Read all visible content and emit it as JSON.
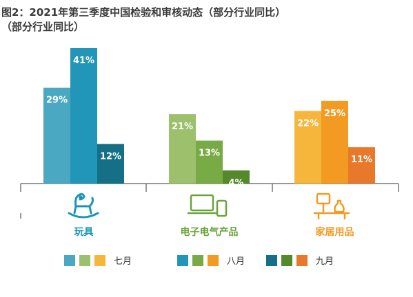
{
  "title_line1": "图2：2021年第三季度中国检验和审核动态（部分行业同比）",
  "title_line2": "（部分行业同比）",
  "chart_data": {
    "type": "bar",
    "categories": [
      "玩具",
      "电子电气产品",
      "家居用品"
    ],
    "series": [
      {
        "name": "七月",
        "values": [
          29,
          21,
          22
        ]
      },
      {
        "name": "八月",
        "values": [
          41,
          13,
          25
        ]
      },
      {
        "name": "九月",
        "values": [
          12,
          4,
          11
        ]
      }
    ],
    "value_suffix": "%",
    "ylim": [
      0,
      45
    ],
    "grid": false,
    "legend_position": "bottom",
    "colors": [
      [
        "#4aa8c3",
        "#2296b8",
        "#146f87"
      ],
      [
        "#9cc06b",
        "#78ab45",
        "#55892b"
      ],
      [
        "#f6b63c",
        "#f29a22",
        "#e8782a"
      ]
    ],
    "category_label_colors": [
      "#1a96b5",
      "#6aa33a",
      "#f29a22"
    ],
    "category_icons": [
      "rocking-horse-icon",
      "laptop-phone-icon",
      "desk-lamp-vase-icon"
    ]
  }
}
